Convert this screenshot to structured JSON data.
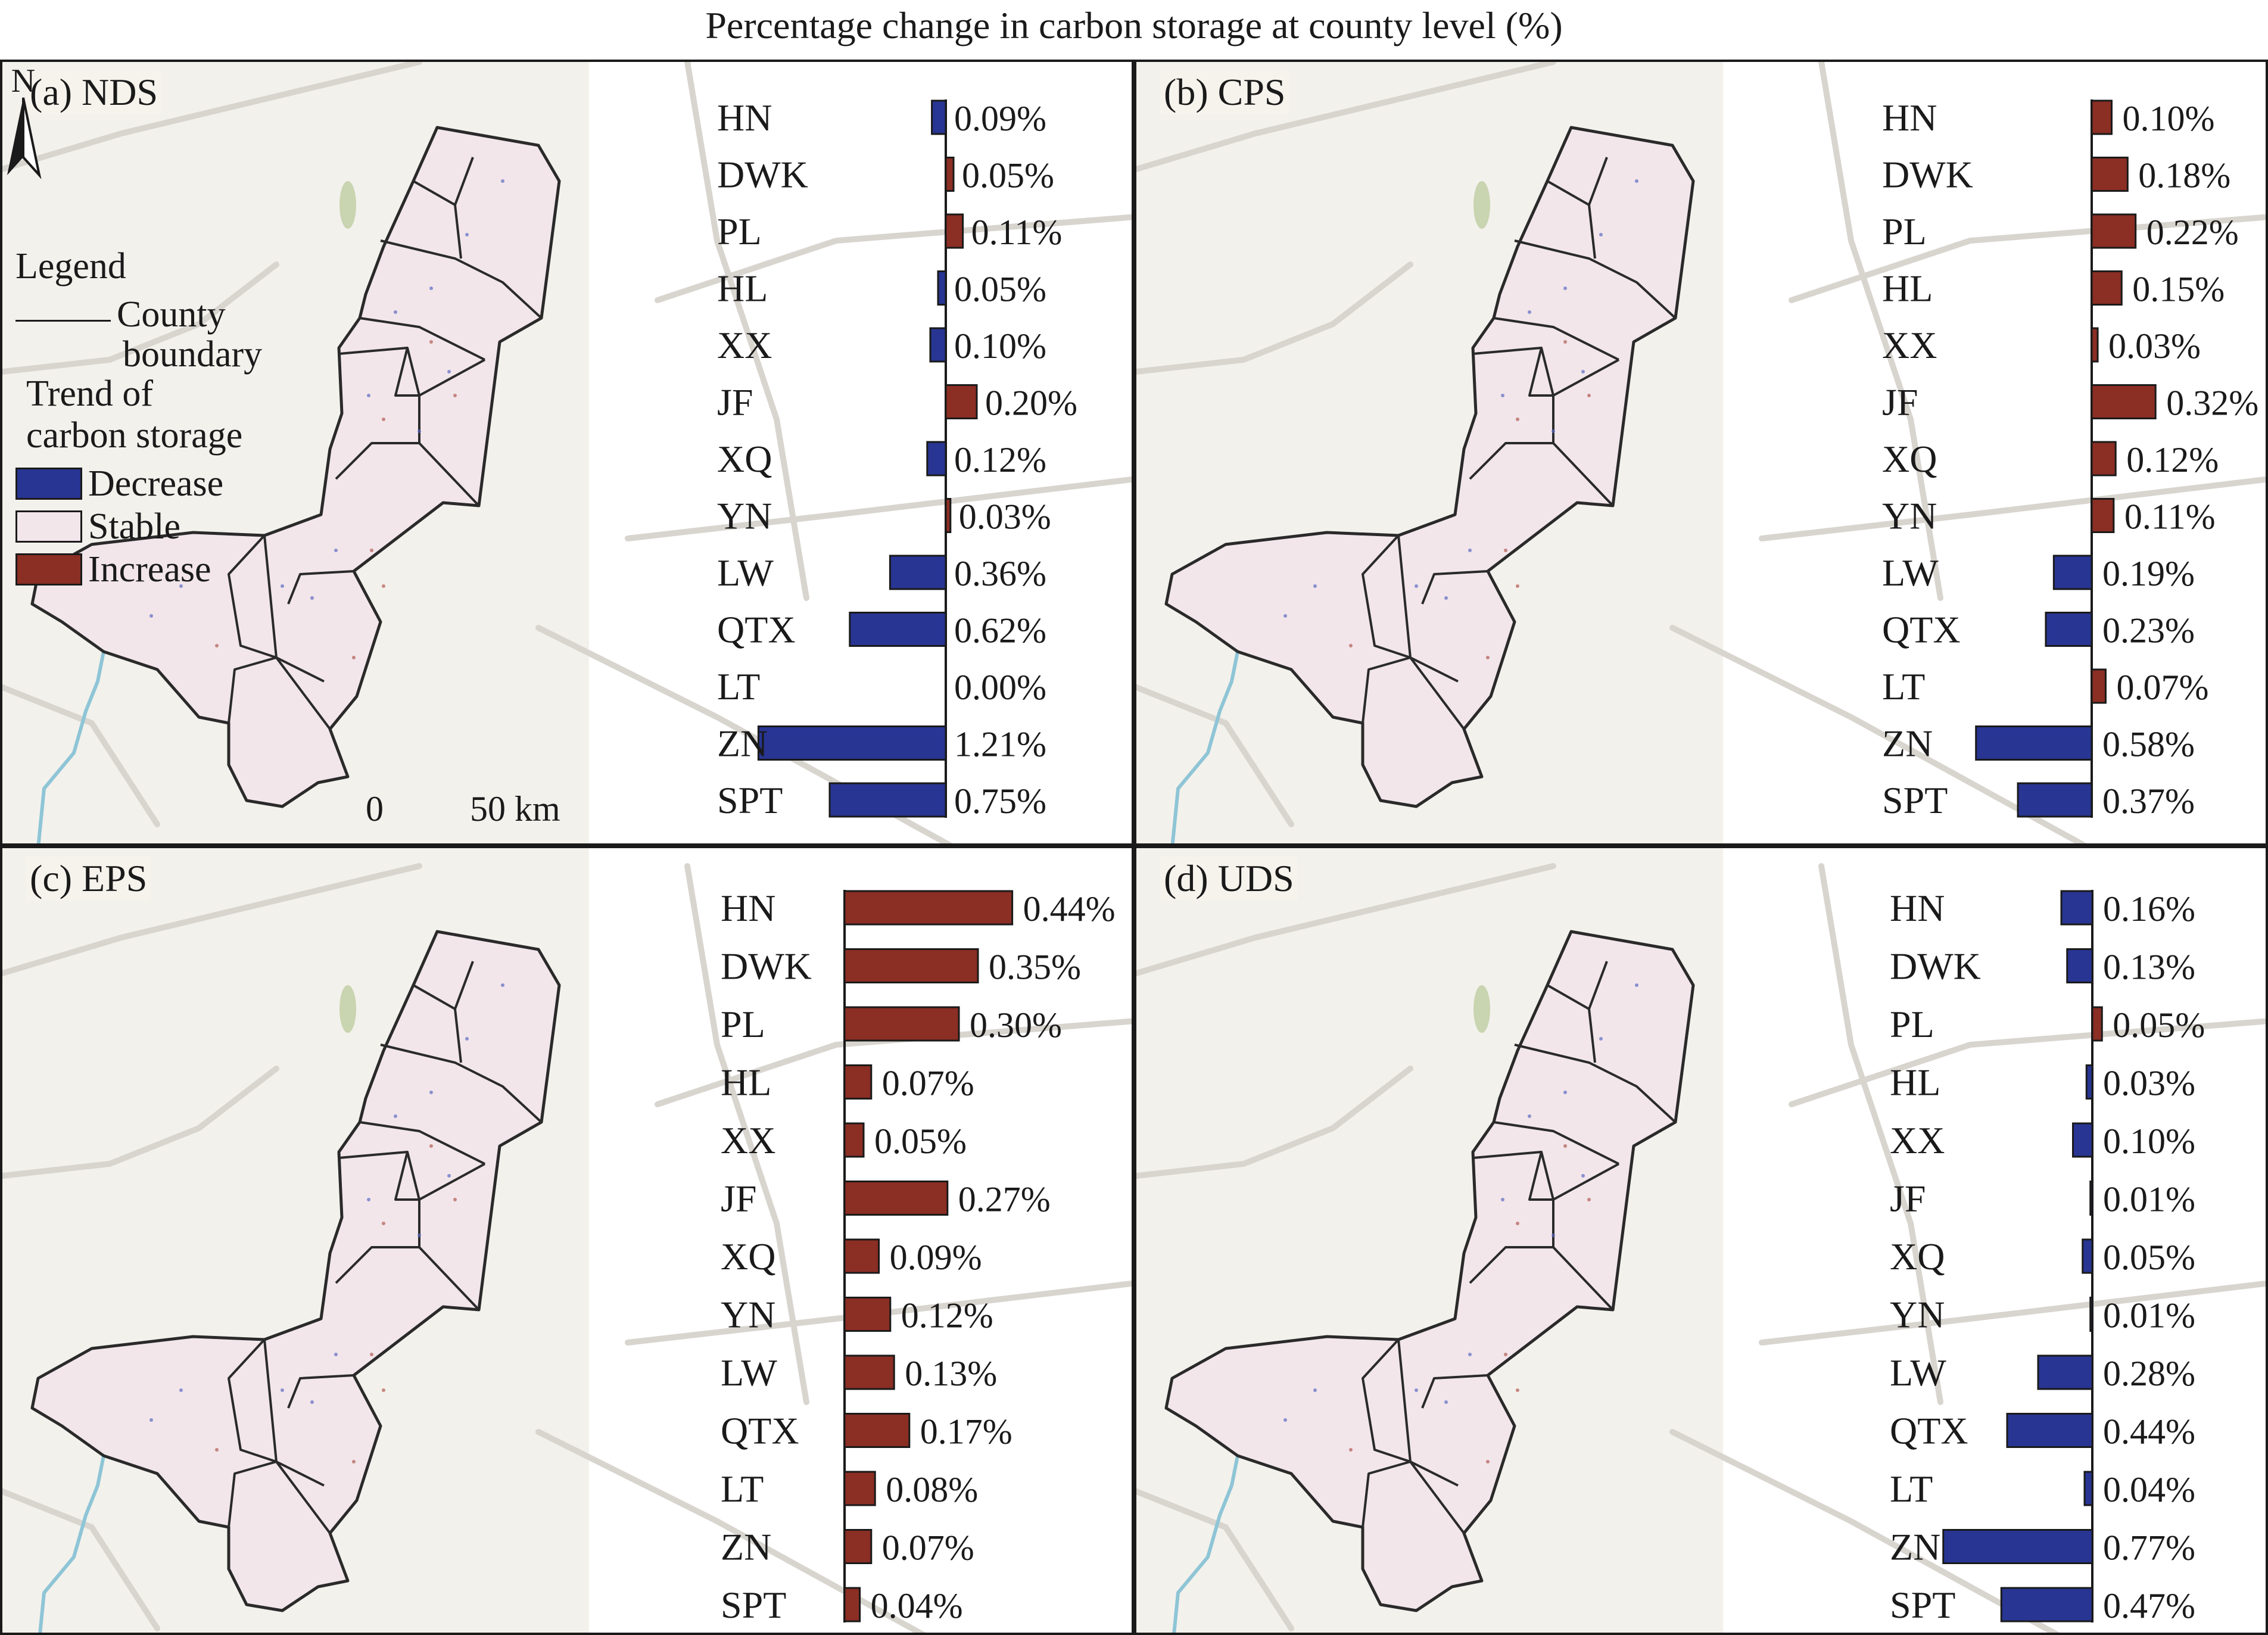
{
  "figure_title": "Percentage change in carbon storage at county level (%)",
  "colors": {
    "decrease": "#283593",
    "increase": "#8b2e24",
    "stable": "#f2e6eb",
    "basemap": "#f3f1ec",
    "border": "#1a1a1a"
  },
  "legend": {
    "title": "Legend",
    "boundary_line1": "County",
    "boundary_line2": "boundary",
    "trend_line1": "Trend of",
    "trend_line2": "carbon storage",
    "decrease": "Decrease",
    "stable": "Stable",
    "increase": "Increase"
  },
  "scale_bar": {
    "start": "0",
    "end": "50 km"
  },
  "north_arrow": {
    "label": "N"
  },
  "chart_data": [
    {
      "type": "bar",
      "panel": "(a) NDS",
      "categories": [
        "HN",
        "DWK",
        "PL",
        "HL",
        "XX",
        "JF",
        "XQ",
        "YN",
        "LW",
        "QTX",
        "LT",
        "ZN",
        "SPT"
      ],
      "values": [
        -0.09,
        0.05,
        0.11,
        -0.05,
        -0.1,
        0.2,
        -0.12,
        0.03,
        -0.36,
        -0.62,
        0.0,
        -1.21,
        -0.75
      ],
      "labels": [
        "0.09%",
        "0.05%",
        "0.11%",
        "0.05%",
        "0.10%",
        "0.20%",
        "0.12%",
        "0.03%",
        "0.36%",
        "0.62%",
        "0.00%",
        "1.21%",
        "0.75%"
      ]
    },
    {
      "type": "bar",
      "panel": "(b) CPS",
      "categories": [
        "HN",
        "DWK",
        "PL",
        "HL",
        "XX",
        "JF",
        "XQ",
        "YN",
        "LW",
        "QTX",
        "LT",
        "ZN",
        "SPT"
      ],
      "values": [
        0.1,
        0.18,
        0.22,
        0.15,
        0.03,
        0.32,
        0.12,
        0.11,
        -0.19,
        -0.23,
        0.07,
        -0.58,
        -0.37
      ],
      "labels": [
        "0.10%",
        "0.18%",
        "0.22%",
        "0.15%",
        "0.03%",
        "0.32%",
        "0.12%",
        "0.11%",
        "0.19%",
        "0.23%",
        "0.07%",
        "0.58%",
        "0.37%"
      ]
    },
    {
      "type": "bar",
      "panel": "(c) EPS",
      "categories": [
        "HN",
        "DWK",
        "PL",
        "HL",
        "XX",
        "JF",
        "XQ",
        "YN",
        "LW",
        "QTX",
        "LT",
        "ZN",
        "SPT"
      ],
      "values": [
        0.44,
        0.35,
        0.3,
        0.07,
        0.05,
        0.27,
        0.09,
        0.12,
        0.13,
        0.17,
        0.08,
        0.07,
        0.04
      ],
      "labels": [
        "0.44%",
        "0.35%",
        "0.30%",
        "0.07%",
        "0.05%",
        "0.27%",
        "0.09%",
        "0.12%",
        "0.13%",
        "0.17%",
        "0.08%",
        "0.07%",
        "0.04%"
      ]
    },
    {
      "type": "bar",
      "panel": "(d) UDS",
      "categories": [
        "HN",
        "DWK",
        "PL",
        "HL",
        "XX",
        "JF",
        "XQ",
        "YN",
        "LW",
        "QTX",
        "LT",
        "ZN",
        "SPT"
      ],
      "values": [
        -0.16,
        -0.13,
        0.05,
        -0.03,
        -0.1,
        -0.01,
        -0.05,
        -0.01,
        -0.28,
        -0.44,
        -0.04,
        -0.77,
        -0.47
      ],
      "labels": [
        "0.16%",
        "0.13%",
        "0.05%",
        "0.03%",
        "0.10%",
        "0.01%",
        "0.05%",
        "0.01%",
        "0.28%",
        "0.44%",
        "0.04%",
        "0.77%",
        "0.47%"
      ]
    }
  ]
}
